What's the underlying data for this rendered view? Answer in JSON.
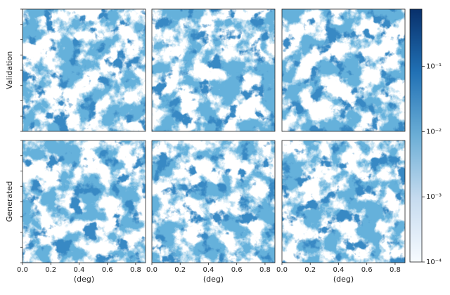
{
  "chart_data": {
    "type": "heatmap",
    "row_labels": [
      "Validation",
      "Generated"
    ],
    "xlabel": "(deg)",
    "xlim": [
      0,
      0.87
    ],
    "xticks": [
      {
        "value": 0,
        "label": "0.0"
      },
      0.2,
      0.4,
      0.6,
      0.8
    ],
    "colorbar": {
      "scale": "log",
      "clim": [
        0.0001,
        0.76
      ],
      "ticks": [
        {
          "value": 0.0001,
          "label": "10⁻⁴"
        },
        {
          "value": 0.001,
          "label": "10⁻³"
        },
        {
          "value": 0.01,
          "label": "10⁻²"
        },
        {
          "value": 0.1,
          "label": "10⁻¹"
        }
      ],
      "colors": [
        "#f7fbff",
        "#c6dbef",
        "#6baed6",
        "#2171b5",
        "#08306b"
      ]
    }
  }
}
